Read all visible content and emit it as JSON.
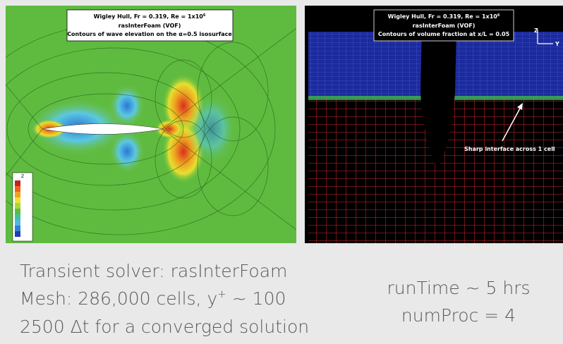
{
  "left_panel": {
    "caption": {
      "line1": {
        "text": "Wigley Hull, Fr = 0.319, Re = 1x10",
        "sup": "6"
      },
      "line2": "rasInterFoam (VOF)",
      "line3": "Contours of wave elevation on the α=0.5 isosurface"
    },
    "colorbar_title": "Z"
  },
  "right_panel": {
    "caption": {
      "line1": {
        "text": "Wigley Hull, Fr = 0.319, Re = 1x10",
        "sup": "6"
      },
      "line2": "rasInterFoam (VOF)",
      "line3": "Contours of volume fraction at x/L = 0.05"
    },
    "axis_labels": {
      "vertical": "Z",
      "horizontal": "Y"
    },
    "annotation": "Sharp interface across 1 cell"
  },
  "notes_left": {
    "line1": "Transient solver:  rasInterFoam",
    "line2": {
      "before": "Mesh:  286,000 cells,  ",
      "var": "y",
      "sup": "+",
      "after": " ~ 100"
    },
    "line3": "2500 Δt for a converged solution"
  },
  "notes_right": {
    "line1": "runTime ~ 5 hrs",
    "line2": "numProc = 4"
  }
}
